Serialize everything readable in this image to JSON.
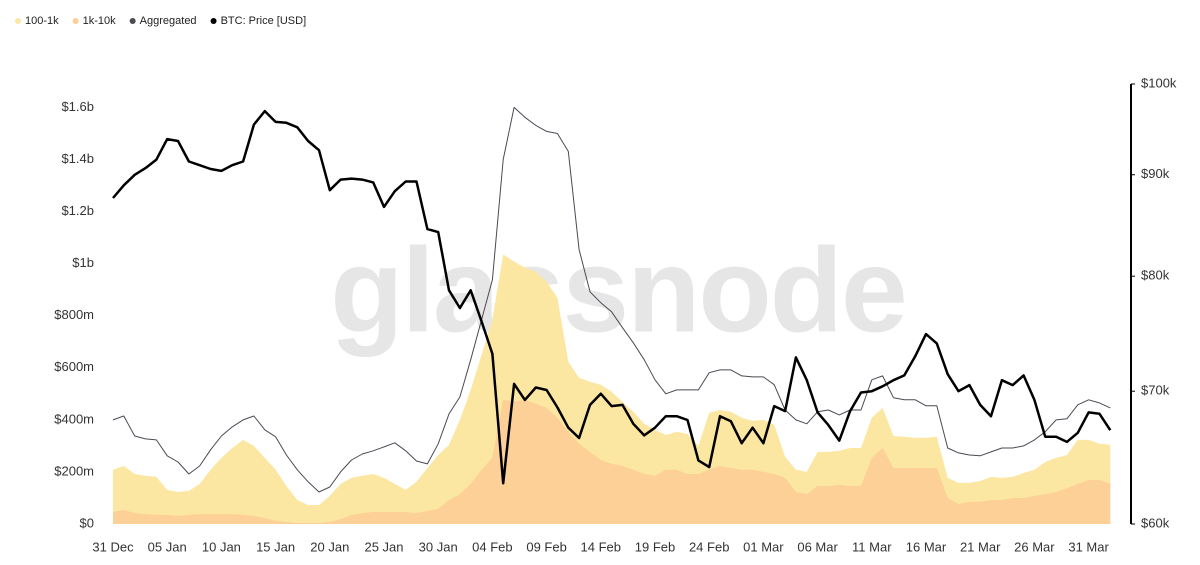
{
  "chart_data": {
    "type": "area",
    "watermark": "glassnode",
    "categories": [
      "31 Dec",
      null,
      null,
      null,
      null,
      "05 Jan",
      null,
      null,
      null,
      null,
      "10 Jan",
      null,
      null,
      null,
      null,
      "15 Jan",
      null,
      null,
      null,
      null,
      "20 Jan",
      null,
      null,
      null,
      null,
      "25 Jan",
      null,
      null,
      null,
      null,
      "30 Jan",
      null,
      null,
      null,
      null,
      "04 Feb",
      null,
      null,
      null,
      null,
      "09 Feb",
      null,
      null,
      null,
      null,
      "14 Feb",
      null,
      null,
      null,
      null,
      "19 Feb",
      null,
      null,
      null,
      null,
      "24 Feb",
      null,
      null,
      null,
      null,
      "01 Mar",
      null,
      null,
      null,
      null,
      "06 Mar",
      null,
      null,
      null,
      null,
      "11 Mar",
      null,
      null,
      null,
      null,
      "16 Mar",
      null,
      null,
      null,
      null,
      "21 Mar",
      null,
      null,
      null,
      null,
      "26 Mar",
      null,
      null,
      null,
      null,
      "31 Mar",
      null,
      null
    ],
    "series": [
      {
        "name": "100-1k",
        "mark": "area",
        "color": "#fbe7a1",
        "values": [
          208,
          223,
          192,
          185,
          181,
          131,
          123,
          127,
          154,
          208,
          254,
          292,
          323,
          300,
          254,
          208,
          146,
          92,
          73,
          73,
          108,
          154,
          177,
          185,
          192,
          177,
          154,
          131,
          162,
          215,
          265,
          304,
          400,
          515,
          650,
          785,
          1035,
          1008,
          985,
          969,
          931,
          869,
          623,
          562,
          546,
          535,
          508,
          469,
          431,
          385,
          362,
          342,
          354,
          346,
          300,
          427,
          438,
          431,
          408,
          396,
          400,
          381,
          258,
          208,
          200,
          277,
          277,
          281,
          292,
          292,
          408,
          446,
          338,
          335,
          331,
          331,
          335,
          177,
          158,
          158,
          165,
          181,
          177,
          181,
          196,
          208,
          238,
          254,
          265,
          323,
          323,
          308,
          304
        ]
      },
      {
        "name": "1k-10k",
        "mark": "area",
        "color": "#fcd096",
        "values": [
          46,
          54,
          42,
          38,
          35,
          35,
          31,
          35,
          38,
          38,
          38,
          38,
          35,
          31,
          23,
          12,
          8,
          4,
          4,
          4,
          8,
          19,
          35,
          42,
          46,
          46,
          46,
          46,
          42,
          50,
          58,
          92,
          115,
          154,
          208,
          254,
          477,
          469,
          477,
          462,
          446,
          408,
          354,
          308,
          277,
          246,
          231,
          223,
          208,
          192,
          185,
          208,
          208,
          192,
          192,
          208,
          223,
          215,
          208,
          208,
          200,
          192,
          177,
          123,
          115,
          146,
          146,
          150,
          146,
          146,
          254,
          292,
          215,
          215,
          215,
          215,
          215,
          100,
          77,
          85,
          85,
          92,
          92,
          100,
          100,
          108,
          115,
          123,
          138,
          154,
          169,
          169,
          154
        ]
      },
      {
        "name": "Aggregated",
        "mark": "line",
        "color": "#4a4a55",
        "values": [
          400,
          415,
          338,
          327,
          323,
          262,
          238,
          192,
          223,
          285,
          338,
          373,
          400,
          415,
          362,
          335,
          265,
          208,
          162,
          123,
          142,
          200,
          246,
          269,
          281,
          296,
          312,
          281,
          242,
          231,
          308,
          423,
          488,
          631,
          785,
          938,
          1400,
          1600,
          1562,
          1531,
          1508,
          1500,
          1431,
          1054,
          892,
          850,
          815,
          754,
          696,
          631,
          554,
          500,
          515,
          515,
          515,
          581,
          592,
          592,
          569,
          565,
          565,
          535,
          438,
          400,
          385,
          431,
          438,
          419,
          438,
          438,
          554,
          569,
          485,
          477,
          477,
          454,
          454,
          292,
          273,
          265,
          262,
          277,
          292,
          292,
          300,
          323,
          354,
          400,
          404,
          458,
          477,
          465,
          446
        ]
      },
      {
        "name": "BTC: Price [USD]",
        "mark": "line",
        "axis": "y2",
        "color": "#000000",
        "values": [
          87.6,
          88.9,
          90.0,
          90.7,
          91.6,
          93.8,
          93.6,
          91.4,
          91.0,
          90.6,
          90.4,
          91.0,
          91.4,
          95.4,
          96.9,
          95.7,
          95.6,
          95.1,
          93.6,
          92.6,
          88.4,
          89.5,
          89.6,
          89.5,
          89.2,
          86.7,
          88.3,
          89.3,
          89.3,
          84.5,
          84.2,
          78.7,
          77.1,
          78.7,
          75.9,
          73.1,
          62.9,
          70.6,
          69.3,
          70.3,
          70.1,
          68.7,
          67.1,
          66.3,
          68.9,
          69.8,
          68.8,
          68.9,
          67.4,
          66.5,
          67.1,
          68.0,
          68.0,
          67.7,
          64.6,
          64.1,
          68.0,
          67.6,
          65.9,
          67.1,
          65.9,
          68.8,
          68.4,
          72.8,
          70.9,
          68.3,
          67.3,
          66.1,
          68.4,
          69.9,
          70.0,
          70.4,
          70.9,
          71.3,
          72.9,
          74.8,
          74.0,
          71.4,
          70.0,
          70.5,
          68.9,
          68.0,
          70.9,
          70.5,
          71.3,
          69.3,
          66.4,
          66.4,
          66.0,
          66.7,
          68.3,
          68.2,
          66.9
        ]
      }
    ],
    "ylim": [
      0,
      1690
    ],
    "yticks": [
      {
        "value": 0,
        "label": "$0"
      },
      {
        "value": 200,
        "label": "$200m"
      },
      {
        "value": 400,
        "label": "$400m"
      },
      {
        "value": 600,
        "label": "$600m"
      },
      {
        "value": 800,
        "label": "$800m"
      },
      {
        "value": 1000,
        "label": "$1b"
      },
      {
        "value": 1200,
        "label": "$1.2b"
      },
      {
        "value": 1400,
        "label": "$1.4b"
      },
      {
        "value": 1600,
        "label": "$1.6b"
      }
    ],
    "y2lim": [
      60,
      100
    ],
    "y2_scale": "log",
    "y2ticks": [
      {
        "value": 60,
        "label": "$60k"
      },
      {
        "value": 70,
        "label": "$70k"
      },
      {
        "value": 80,
        "label": "$80k"
      },
      {
        "value": 90,
        "label": "$90k"
      },
      {
        "value": 100,
        "label": "$100k"
      }
    ],
    "grid": false
  }
}
